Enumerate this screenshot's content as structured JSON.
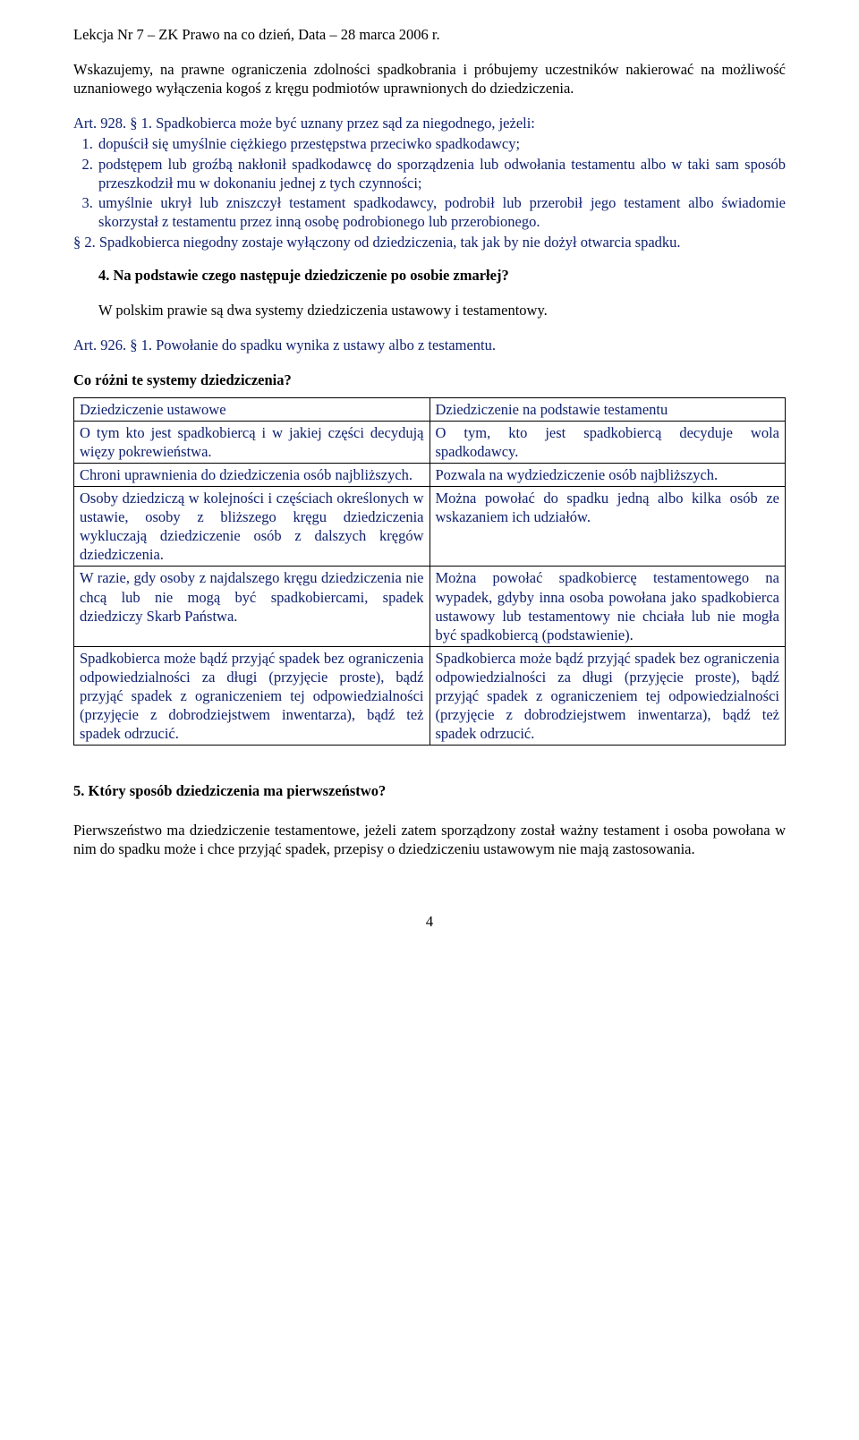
{
  "header": "Lekcja Nr 7 – ZK Prawo na co dzień,  Data – 28 marca 2006 r.",
  "intro": "Wskazujemy, na prawne ograniczenia zdolności spadkobrania i próbujemy uczestników nakierować na możliwość uznaniowego wyłączenia kogoś z kręgu podmiotów uprawnionych do dziedziczenia.",
  "art928_lead": "Art. 928. § 1. Spadkobierca może być uznany przez sąd za niegodnego, jeżeli:",
  "art928_items": [
    "dopuścił się umyślnie ciężkiego przestępstwa przeciwko spadkodawcy;",
    "podstępem lub groźbą nakłonił spadkodawcę do sporządzenia lub odwołania testamentu albo w taki sam sposób przeszkodził mu w dokonaniu jednej z tych czynności;",
    "umyślnie ukrył lub zniszczył testament spadkodawcy, podrobił lub przerobił jego testament albo świadomie skorzystał z testamentu przez inną osobę podrobionego lub przerobionego."
  ],
  "art928_p2": "§ 2. Spadkobierca niegodny zostaje wyłączony od dziedziczenia, tak jak by nie dożył otwarcia spadku.",
  "q4": "4.   Na podstawie czego następuje dziedziczenie po osobie zmarłej?",
  "q4_ans": "W polskim prawie są dwa systemy dziedziczenia ustawowy i testamentowy.",
  "art926": "Art. 926. § 1. Powołanie do spadku wynika z ustawy albo z testamentu.",
  "q_diff": "Co różni te systemy dziedziczenia?",
  "table": {
    "rows": [
      {
        "left": "Dziedziczenie ustawowe",
        "right": "Dziedziczenie na podstawie testamentu"
      },
      {
        "left": "O tym kto jest spadkobiercą i w jakiej części decydują więzy pokrewieństwa.",
        "right": "O tym, kto jest spadkobiercą decyduje wola spadkodawcy."
      },
      {
        "left": "Chroni uprawnienia do dziedziczenia osób najbliższych.",
        "right": "Pozwala na wydziedziczenie osób najbliższych."
      },
      {
        "left": "Osoby dziedziczą w kolejności i częściach określonych w ustawie, osoby z bliższego kręgu dziedziczenia wykluczają dziedziczenie osób z dalszych kręgów dziedziczenia.",
        "right": "Można powołać do spadku jedną albo kilka osób ze wskazaniem ich udziałów."
      },
      {
        "left": "W razie, gdy osoby z najdalszego kręgu dziedziczenia nie chcą lub nie mogą być spadkobiercami, spadek dziedziczy Skarb Państwa.",
        "right": "Można powołać spadkobiercę testamentowego na wypadek, gdyby inna osoba powołana jako spadkobierca ustawowy lub testamentowy nie chciała lub nie mogła być spadkobiercą (podstawienie)."
      },
      {
        "left": "Spadkobierca może bądź przyjąć spadek bez ograniczenia odpowiedzialności za długi (przyjęcie proste), bądź przyjąć spadek z ograniczeniem tej odpowiedzialności (przyjęcie z dobrodziejstwem inwentarza), bądź też spadek odrzucić.",
        "right": "Spadkobierca może bądź przyjąć spadek bez ograniczenia odpowiedzialności za długi (przyjęcie proste), bądź przyjąć spadek z ograniczeniem tej odpowiedzialności (przyjęcie z dobrodziejstwem inwentarza), bądź też spadek odrzucić."
      }
    ]
  },
  "q5": "5.  Który sposób dziedziczenia ma pierwszeństwo?",
  "q5_ans": "Pierwszeństwo ma dziedziczenie testamentowe, jeżeli zatem sporządzony został ważny testament i osoba powołana w nim do spadku może i chce  przyjąć spadek, przepisy o dziedziczeniu ustawowym nie mają zastosowania.",
  "page_number": "4",
  "colors": {
    "blue": "#0f216f",
    "black": "#000000",
    "bg": "#ffffff"
  }
}
